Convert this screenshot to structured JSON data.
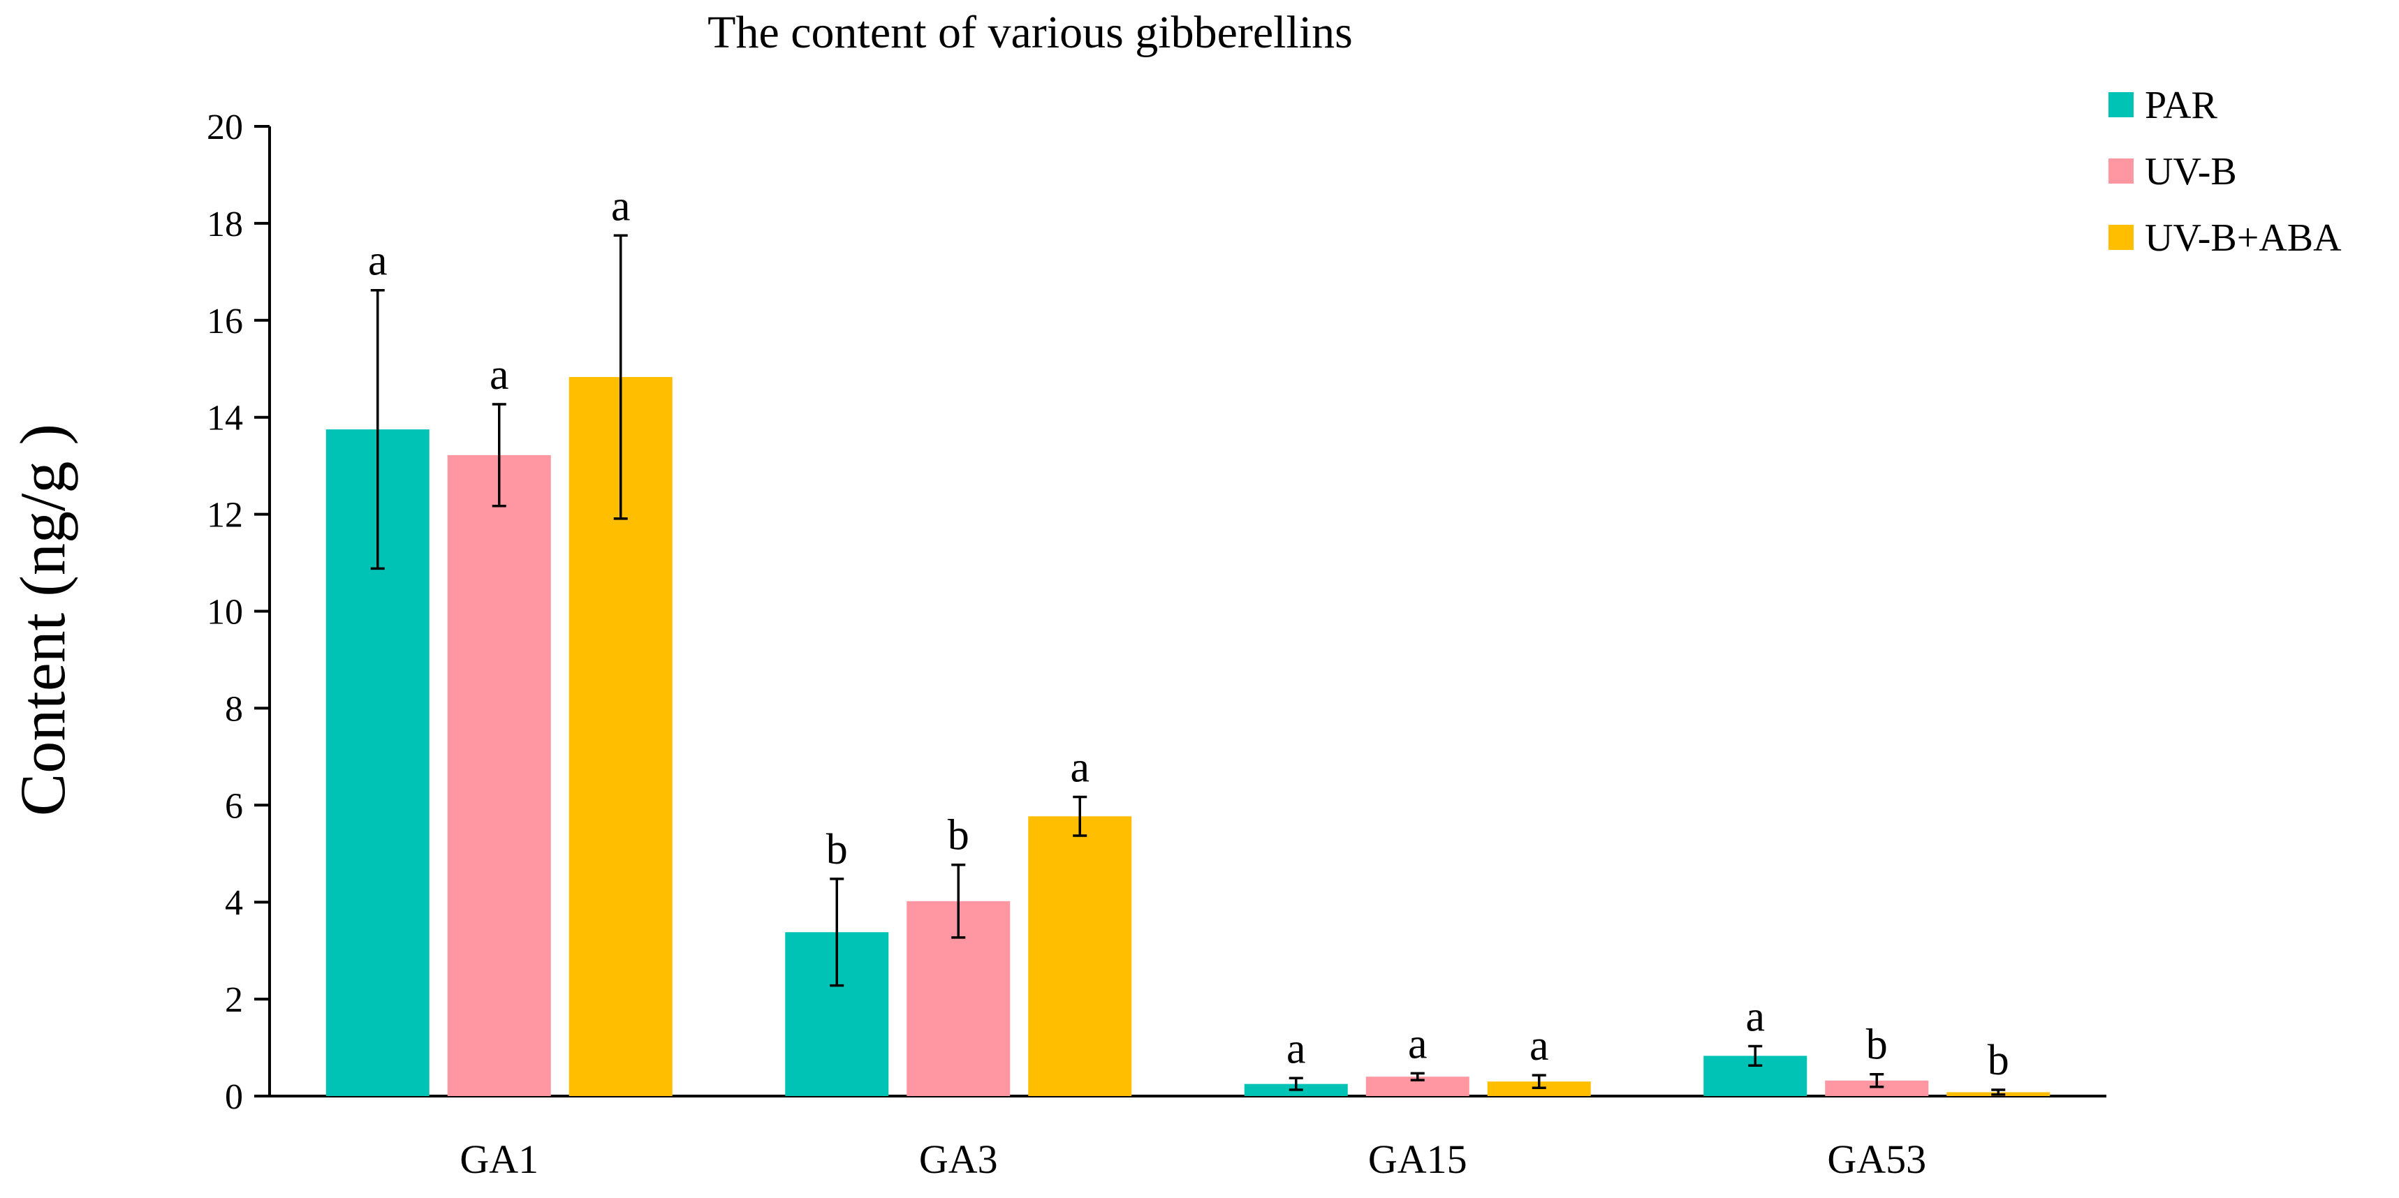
{
  "chart_data": {
    "type": "bar",
    "title": "The content of various gibberellins",
    "xlabel": "",
    "ylabel": "Content (ng/g )",
    "ylim": [
      0,
      20
    ],
    "yticks": [
      0,
      2,
      4,
      6,
      8,
      10,
      12,
      14,
      16,
      18,
      20
    ],
    "grid": false,
    "legend_position": "top-right",
    "categories": [
      "GA1",
      "GA3",
      "GA15",
      "GA53"
    ],
    "series": [
      {
        "name": "PAR",
        "color": "#00C2B5",
        "values": [
          13.75,
          3.38,
          0.25,
          0.83
        ],
        "errors": [
          2.87,
          1.1,
          0.12,
          0.2
        ],
        "significance": [
          "a",
          "b",
          "a",
          "a"
        ]
      },
      {
        "name": "UV-B",
        "color": "#FF97A2",
        "values": [
          13.22,
          4.02,
          0.4,
          0.32
        ],
        "errors": [
          1.05,
          0.75,
          0.07,
          0.13
        ],
        "significance": [
          "a",
          "b",
          "a",
          "b"
        ]
      },
      {
        "name": "UV-B+ABA",
        "color": "#FFBF00",
        "values": [
          14.83,
          5.77,
          0.3,
          0.08
        ],
        "errors": [
          2.92,
          0.4,
          0.13,
          0.05
        ],
        "significance": [
          "a",
          "a",
          "a",
          "b"
        ]
      }
    ]
  }
}
